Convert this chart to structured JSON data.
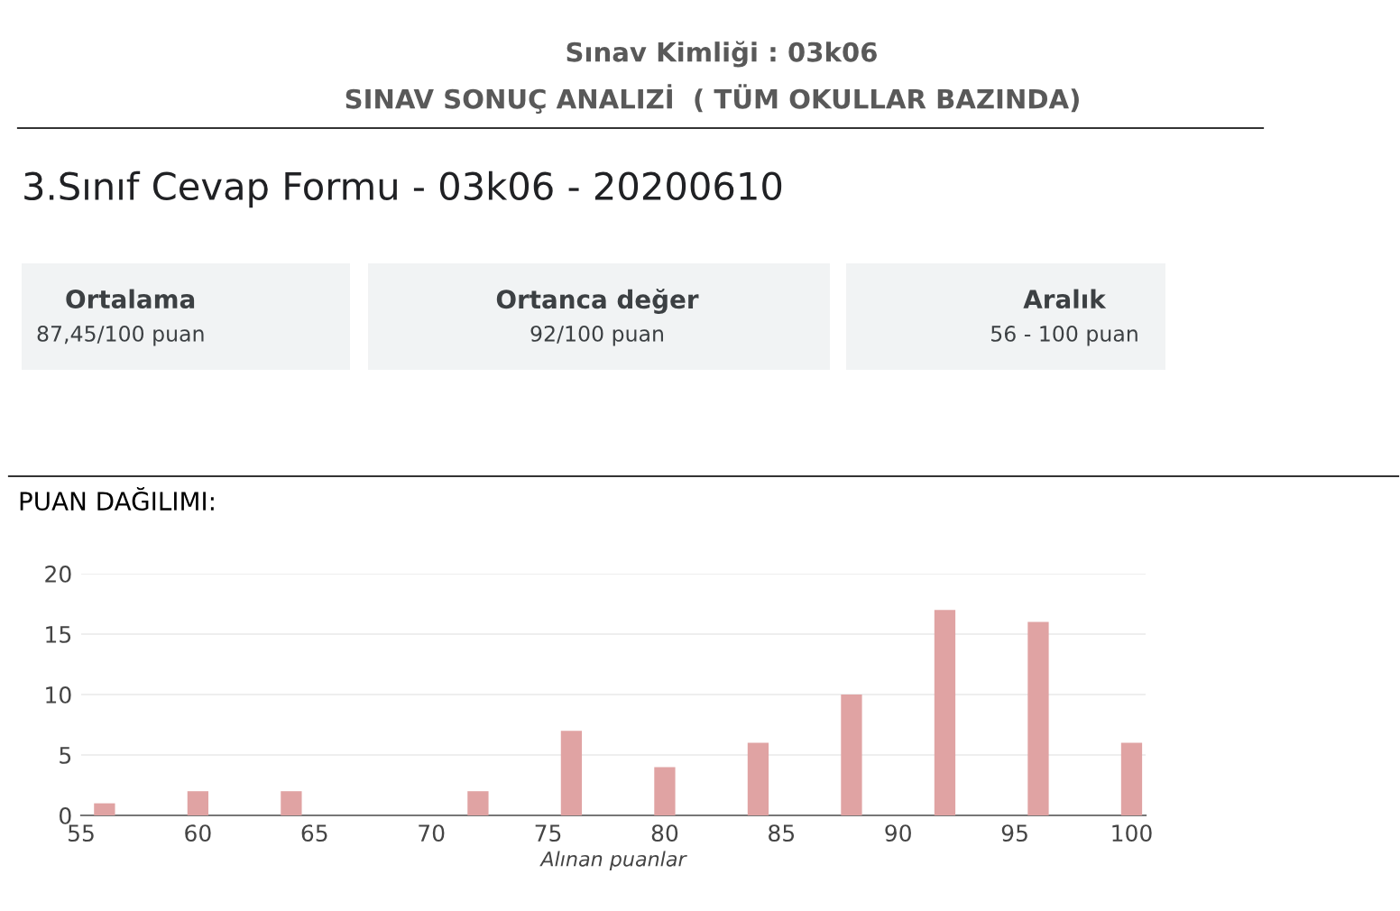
{
  "chart_data": {
    "type": "bar",
    "title": "Sınav Kimliği : 03k06",
    "subtitle": "SINAV SONUÇ ANALIZİ  ( TÜM OKULLAR BAZINDA)",
    "annotations": [
      "3.Sınıf Cevap Formu - 03k06 - 20200610",
      "Ortalama",
      "87,45/100 puan",
      "Ortanca değer",
      "92/100 puan",
      "Aralık",
      "56 - 100 puan",
      "PUAN DAĞILIMI:"
    ],
    "xlabel": "Alınan puanlar",
    "x": [
      56,
      60,
      64,
      72,
      76,
      80,
      84,
      88,
      92,
      96,
      100
    ],
    "values": [
      1,
      2,
      2,
      2,
      7,
      4,
      6,
      10,
      17,
      16,
      6
    ],
    "color": "#e0a3a3",
    "xlim": [
      55,
      100.6
    ],
    "xticks": [
      55,
      60,
      65,
      70,
      75,
      80,
      85,
      90,
      95,
      100
    ],
    "ylim": [
      0,
      20
    ],
    "yticks": [
      0,
      5,
      10,
      15,
      20
    ],
    "grid": "y"
  }
}
